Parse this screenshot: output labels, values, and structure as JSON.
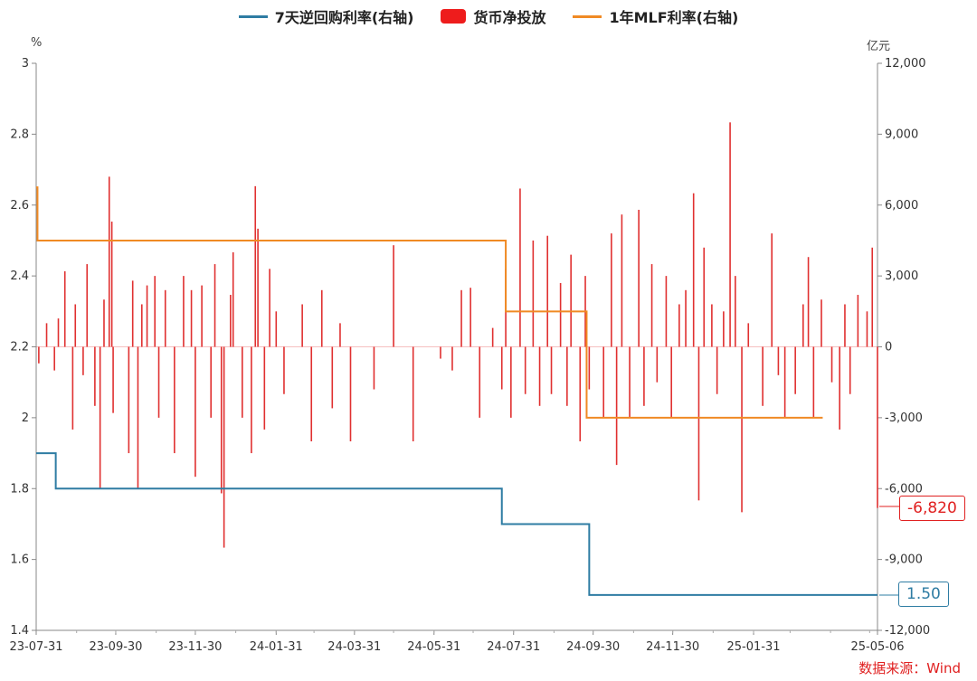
{
  "legend": {
    "repo": "7天逆回购利率(右轴)",
    "net": "货币净投放",
    "mlf": "1年MLF利率(右轴)"
  },
  "units": {
    "left": "%",
    "right": "亿元"
  },
  "source": "数据来源：Wind",
  "callouts": {
    "net": "-6,820",
    "repo": "1.50"
  },
  "colors": {
    "repo": "#2e7ca3",
    "net": "#e03030",
    "mlf": "#f08a24",
    "callout_net": "#e02020",
    "callout_repo": "#2e7ca3"
  },
  "chart_data": {
    "type": "bar+line",
    "x_ticks": [
      "23-07-31",
      "23-09-30",
      "23-11-30",
      "24-01-31",
      "24-03-31",
      "24-05-31",
      "24-07-31",
      "24-09-30",
      "24-11-30",
      "25-01-31",
      "25-05-06"
    ],
    "x_range": [
      "2023-07-31",
      "2025-05-06"
    ],
    "y_left": {
      "unit": "%",
      "range": [
        1.4,
        3.0
      ],
      "ticks": [
        1.4,
        1.6,
        1.8,
        2,
        2.2,
        2.4,
        2.6,
        2.8,
        3
      ]
    },
    "y_right": {
      "unit": "亿元",
      "range": [
        -12000,
        12000
      ],
      "ticks": [
        "-12,000",
        "-9,000",
        "-6,000",
        "-3,000",
        "0",
        "3,000",
        "6,000",
        "9,000",
        "12,000"
      ]
    },
    "series": [
      {
        "name": "7天逆回购利率(右轴)",
        "type": "step",
        "points": [
          [
            "2023-07-31",
            1.9
          ],
          [
            "2023-08-15",
            1.8
          ],
          [
            "2024-07-22",
            1.7
          ],
          [
            "2024-09-27",
            1.5
          ],
          [
            "2025-05-06",
            1.5
          ]
        ]
      },
      {
        "name": "1年MLF利率(右轴)",
        "type": "step",
        "points": [
          [
            "2023-07-31",
            2.65
          ],
          [
            "2023-08-01",
            2.5
          ],
          [
            "2024-07-25",
            2.3
          ],
          [
            "2024-09-25",
            2.0
          ],
          [
            "2025-03-25",
            2.0
          ]
        ]
      },
      {
        "name": "货币净投放",
        "type": "bar",
        "values": [
          [
            "2023-08-02",
            -700
          ],
          [
            "2023-08-08",
            1000
          ],
          [
            "2023-08-14",
            -1000
          ],
          [
            "2023-08-17",
            1200
          ],
          [
            "2023-08-22",
            3200
          ],
          [
            "2023-08-28",
            -3500
          ],
          [
            "2023-08-30",
            1800
          ],
          [
            "2023-09-05",
            -1200
          ],
          [
            "2023-09-08",
            3500
          ],
          [
            "2023-09-14",
            -2500
          ],
          [
            "2023-09-18",
            -6000
          ],
          [
            "2023-09-21",
            2000
          ],
          [
            "2023-09-25",
            7200
          ],
          [
            "2023-09-27",
            5300
          ],
          [
            "2023-09-28",
            -2800
          ],
          [
            "2023-10-10",
            -4500
          ],
          [
            "2023-10-13",
            2800
          ],
          [
            "2023-10-17",
            -6000
          ],
          [
            "2023-10-20",
            1800
          ],
          [
            "2023-10-24",
            2600
          ],
          [
            "2023-10-30",
            3000
          ],
          [
            "2023-11-02",
            -3000
          ],
          [
            "2023-11-07",
            2400
          ],
          [
            "2023-11-14",
            -4500
          ],
          [
            "2023-11-21",
            3000
          ],
          [
            "2023-11-27",
            2400
          ],
          [
            "2023-11-30",
            -5500
          ],
          [
            "2023-12-05",
            2600
          ],
          [
            "2023-12-12",
            -3000
          ],
          [
            "2023-12-15",
            3500
          ],
          [
            "2023-12-20",
            -6200
          ],
          [
            "2023-12-22",
            -8500
          ],
          [
            "2023-12-27",
            2200
          ],
          [
            "2023-12-29",
            4000
          ],
          [
            "2024-01-05",
            -3000
          ],
          [
            "2024-01-12",
            -4500
          ],
          [
            "2024-01-15",
            6800
          ],
          [
            "2024-01-17",
            5000
          ],
          [
            "2024-01-22",
            -3500
          ],
          [
            "2024-01-26",
            3300
          ],
          [
            "2024-01-31",
            1500
          ],
          [
            "2024-02-06",
            -2000
          ],
          [
            "2024-02-20",
            1800
          ],
          [
            "2024-02-27",
            -4000
          ],
          [
            "2024-03-06",
            2400
          ],
          [
            "2024-03-14",
            -2600
          ],
          [
            "2024-03-20",
            1000
          ],
          [
            "2024-03-28",
            -4000
          ],
          [
            "2024-04-15",
            -1800
          ],
          [
            "2024-04-30",
            4300
          ],
          [
            "2024-05-15",
            -4000
          ],
          [
            "2024-06-05",
            -500
          ],
          [
            "2024-06-14",
            -1000
          ],
          [
            "2024-06-21",
            2400
          ],
          [
            "2024-06-28",
            2500
          ],
          [
            "2024-07-05",
            -3000
          ],
          [
            "2024-07-15",
            800
          ],
          [
            "2024-07-22",
            -1800
          ],
          [
            "2024-07-25",
            3300
          ],
          [
            "2024-07-29",
            -3000
          ],
          [
            "2024-08-05",
            6700
          ],
          [
            "2024-08-09",
            -2000
          ],
          [
            "2024-08-15",
            4500
          ],
          [
            "2024-08-20",
            -2500
          ],
          [
            "2024-08-26",
            4700
          ],
          [
            "2024-08-29",
            -2000
          ],
          [
            "2024-09-05",
            2700
          ],
          [
            "2024-09-10",
            -2500
          ],
          [
            "2024-09-13",
            3900
          ],
          [
            "2024-09-20",
            -4000
          ],
          [
            "2024-09-24",
            3000
          ],
          [
            "2024-09-27",
            -1800
          ],
          [
            "2024-10-08",
            -3000
          ],
          [
            "2024-10-14",
            4800
          ],
          [
            "2024-10-18",
            -5000
          ],
          [
            "2024-10-22",
            5600
          ],
          [
            "2024-10-28",
            -3000
          ],
          [
            "2024-11-04",
            5800
          ],
          [
            "2024-11-08",
            -2500
          ],
          [
            "2024-11-14",
            3500
          ],
          [
            "2024-11-18",
            -1500
          ],
          [
            "2024-11-25",
            3000
          ],
          [
            "2024-11-29",
            -3000
          ],
          [
            "2024-12-05",
            1800
          ],
          [
            "2024-12-10",
            2400
          ],
          [
            "2024-12-16",
            6500
          ],
          [
            "2024-12-20",
            -6500
          ],
          [
            "2024-12-24",
            4200
          ],
          [
            "2024-12-30",
            1800
          ],
          [
            "2025-01-03",
            -2000
          ],
          [
            "2025-01-08",
            1500
          ],
          [
            "2025-01-13",
            9500
          ],
          [
            "2025-01-17",
            3000
          ],
          [
            "2025-01-22",
            -7000
          ],
          [
            "2025-01-27",
            1000
          ],
          [
            "2025-02-07",
            -2500
          ],
          [
            "2025-02-14",
            4800
          ],
          [
            "2025-02-19",
            -1200
          ],
          [
            "2025-02-24",
            -3000
          ],
          [
            "2025-03-04",
            -2000
          ],
          [
            "2025-03-10",
            1800
          ],
          [
            "2025-03-14",
            3800
          ],
          [
            "2025-03-18",
            -3000
          ],
          [
            "2025-03-24",
            2000
          ],
          [
            "2025-04-01",
            -1500
          ],
          [
            "2025-04-07",
            -3500
          ],
          [
            "2025-04-11",
            1800
          ],
          [
            "2025-04-15",
            -2000
          ],
          [
            "2025-04-21",
            2200
          ],
          [
            "2025-04-28",
            1500
          ],
          [
            "2025-05-02",
            4200
          ],
          [
            "2025-05-06",
            -6820
          ]
        ]
      }
    ]
  }
}
